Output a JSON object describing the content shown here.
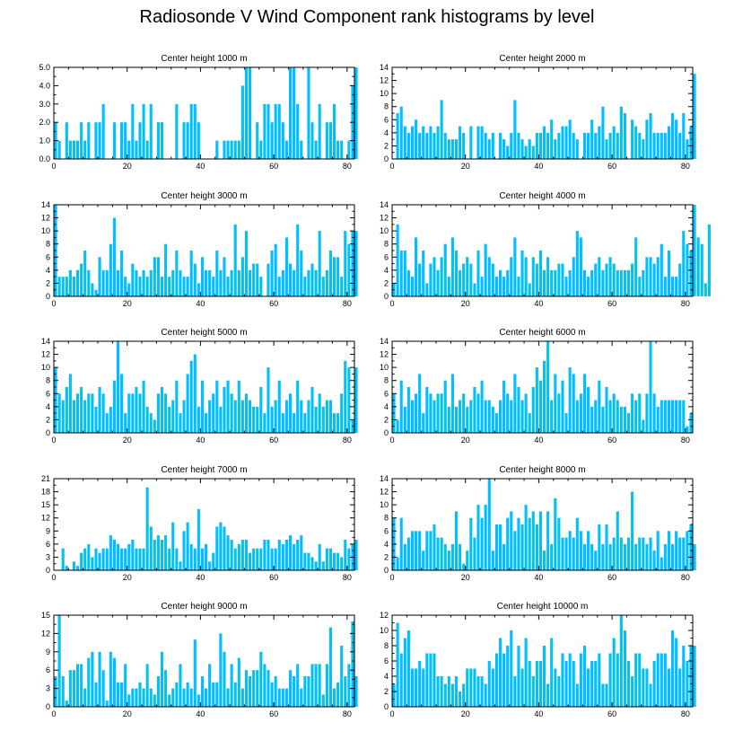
{
  "title": "Radiosonde V Wind Component rank histograms by level",
  "style": {
    "bar_color": "#00bfff",
    "axis_color": "#000000"
  },
  "chart_data": [
    {
      "type": "bar",
      "title": "Center height 1000 m",
      "xlim": [
        0,
        82
      ],
      "ylim": [
        0,
        5
      ],
      "xticks": [
        0,
        20,
        40,
        60,
        80
      ],
      "yticks": [
        0,
        1,
        2,
        3,
        4,
        5
      ],
      "ytick_labels": [
        "0.0",
        "1.0",
        "2.0",
        "3.0",
        "4.0",
        "5.0"
      ],
      "values": [
        2,
        1,
        0,
        2,
        1,
        1,
        1,
        2,
        1,
        2,
        0,
        2,
        2,
        3,
        0,
        0,
        2,
        0,
        2,
        2,
        1,
        3,
        1,
        2,
        3,
        1,
        3,
        0,
        2,
        2,
        0,
        0,
        0,
        3,
        0,
        2,
        2,
        3,
        3,
        2,
        0,
        0,
        0,
        0,
        1,
        0,
        1,
        1,
        1,
        1,
        1,
        4,
        5,
        5,
        0,
        2,
        1,
        3,
        3,
        2,
        3,
        3,
        2,
        1,
        5,
        5,
        3,
        1,
        0,
        5,
        2,
        1,
        3,
        0,
        2,
        2,
        3,
        1,
        1,
        0,
        1,
        4,
        5
      ]
    },
    {
      "type": "bar",
      "title": "Center height 2000 m",
      "xlim": [
        0,
        82
      ],
      "ylim": [
        0,
        14
      ],
      "xticks": [
        0,
        20,
        40,
        60,
        80
      ],
      "yticks": [
        0,
        2,
        4,
        6,
        8,
        10,
        12,
        14
      ],
      "values": [
        0,
        7,
        8,
        5,
        4,
        5,
        6,
        4,
        5,
        4,
        5,
        4,
        5,
        9,
        4,
        3,
        3,
        3,
        5,
        4,
        0,
        5,
        0,
        5,
        5,
        4,
        3,
        4,
        0,
        4,
        3,
        2,
        4,
        9,
        4,
        3,
        2,
        3,
        2,
        4,
        4,
        5,
        4,
        6,
        3,
        4,
        5,
        5,
        6,
        4,
        3,
        0,
        4,
        4,
        6,
        4,
        5,
        8,
        3,
        4,
        5,
        4,
        8,
        7,
        0,
        6,
        5,
        4,
        3,
        6,
        7,
        4,
        4,
        4,
        4,
        5,
        7,
        6,
        4,
        7,
        3,
        5,
        13
      ]
    },
    {
      "type": "bar",
      "title": "Center height 3000 m",
      "xlim": [
        0,
        82
      ],
      "ylim": [
        0,
        14
      ],
      "xticks": [
        0,
        20,
        40,
        60,
        80
      ],
      "yticks": [
        0,
        2,
        4,
        6,
        8,
        10,
        12,
        14
      ],
      "values": [
        14,
        3,
        3,
        3,
        4,
        3,
        4,
        5,
        7,
        4,
        2,
        1,
        6,
        4,
        4,
        8,
        12,
        4,
        7,
        3,
        2,
        5,
        4,
        3,
        4,
        3,
        4,
        6,
        6,
        3,
        8,
        3,
        4,
        7,
        4,
        3,
        3,
        7,
        5,
        2,
        6,
        4,
        4,
        3,
        7,
        4,
        6,
        3,
        4,
        11,
        4,
        6,
        10,
        4,
        5,
        5,
        3,
        0,
        5,
        7,
        8,
        3,
        4,
        9,
        5,
        4,
        11,
        7,
        3,
        4,
        5,
        4,
        10,
        3,
        4,
        7,
        6,
        6,
        3,
        10,
        8,
        10,
        10
      ]
    },
    {
      "type": "bar",
      "title": "Center height 4000 m",
      "xlim": [
        0,
        82
      ],
      "ylim": [
        0,
        14
      ],
      "xticks": [
        0,
        20,
        40,
        60,
        80
      ],
      "yticks": [
        0,
        2,
        4,
        6,
        8,
        10,
        12,
        14
      ],
      "values": [
        2,
        11,
        7,
        7,
        4,
        3,
        9,
        5,
        7,
        2,
        5,
        6,
        4,
        6,
        8,
        3,
        9,
        7,
        4,
        5,
        6,
        5,
        2,
        7,
        3,
        8,
        6,
        5,
        3,
        4,
        3,
        4,
        6,
        9,
        3,
        7,
        6,
        2,
        6,
        5,
        7,
        4,
        6,
        4,
        4,
        5,
        5,
        3,
        4,
        6,
        10,
        9,
        4,
        3,
        4,
        5,
        6,
        4,
        5,
        6,
        5,
        4,
        4,
        4,
        4,
        5,
        9,
        3,
        4,
        6,
        6,
        5,
        6,
        8,
        3,
        7,
        3,
        3,
        5,
        10,
        8,
        7,
        14,
        9,
        8,
        2,
        11
      ]
    },
    {
      "type": "bar",
      "title": "Center height 5000 m",
      "xlim": [
        0,
        82
      ],
      "ylim": [
        0,
        14
      ],
      "xticks": [
        0,
        20,
        40,
        60,
        80
      ],
      "yticks": [
        0,
        2,
        4,
        6,
        8,
        10,
        12,
        14
      ],
      "values": [
        10,
        6,
        5,
        7,
        9,
        5,
        6,
        7,
        5,
        6,
        6,
        4,
        7,
        6,
        3,
        4,
        8,
        14,
        9,
        3,
        6,
        6,
        7,
        6,
        8,
        4,
        3,
        2,
        6,
        7,
        6,
        4,
        5,
        8,
        3,
        5,
        9,
        11,
        12,
        4,
        8,
        3,
        5,
        6,
        8,
        4,
        7,
        8,
        6,
        5,
        8,
        5,
        6,
        5,
        4,
        4,
        7,
        3,
        10,
        4,
        5,
        8,
        3,
        5,
        6,
        3,
        8,
        5,
        3,
        5,
        7,
        4,
        6,
        4,
        5,
        5,
        3,
        3,
        6,
        11,
        10,
        2,
        10
      ]
    },
    {
      "type": "bar",
      "title": "Center height 6000 m",
      "xlim": [
        0,
        82
      ],
      "ylim": [
        0,
        14
      ],
      "xticks": [
        0,
        20,
        40,
        60,
        80
      ],
      "yticks": [
        0,
        2,
        4,
        6,
        8,
        10,
        12,
        14
      ],
      "values": [
        6,
        2,
        8,
        4,
        7,
        5,
        6,
        9,
        3,
        7,
        6,
        5,
        6,
        6,
        8,
        4,
        9,
        4,
        5,
        6,
        4,
        5,
        7,
        6,
        8,
        5,
        5,
        4,
        3,
        5,
        8,
        6,
        5,
        9,
        7,
        5,
        6,
        3,
        7,
        10,
        8,
        11,
        14,
        5,
        9,
        6,
        8,
        3,
        10,
        9,
        5,
        6,
        9,
        7,
        4,
        5,
        8,
        4,
        7,
        5,
        6,
        5,
        4,
        4,
        3,
        6,
        5,
        6,
        2,
        6,
        14,
        6,
        4,
        5,
        5,
        5,
        5,
        5,
        5,
        5,
        1,
        3
      ]
    },
    {
      "type": "bar",
      "title": "Center height 7000 m",
      "xlim": [
        0,
        82
      ],
      "ylim": [
        0,
        21
      ],
      "xticks": [
        0,
        20,
        40,
        60,
        80
      ],
      "yticks": [
        0,
        3,
        6,
        9,
        12,
        15,
        18,
        21
      ],
      "values": [
        0,
        0,
        5,
        1,
        0,
        2,
        1,
        4,
        5,
        6,
        3,
        5,
        4,
        5,
        5,
        8,
        7,
        6,
        5,
        5,
        6,
        7,
        5,
        5,
        5,
        19,
        10,
        7,
        8,
        7,
        8,
        5,
        11,
        5,
        2,
        9,
        11,
        6,
        5,
        14,
        5,
        6,
        2,
        4,
        10,
        11,
        10,
        8,
        7,
        5,
        6,
        7,
        7,
        4,
        5,
        5,
        5,
        7,
        7,
        5,
        5,
        7,
        6,
        7,
        8,
        6,
        7,
        8,
        4,
        4,
        3,
        2,
        6,
        2,
        5,
        5,
        4,
        4,
        3,
        7,
        5,
        6,
        7
      ]
    },
    {
      "type": "bar",
      "title": "Center height 8000 m",
      "xlim": [
        0,
        82
      ],
      "ylim": [
        0,
        14
      ],
      "xticks": [
        0,
        20,
        40,
        60,
        80
      ],
      "yticks": [
        0,
        2,
        4,
        6,
        8,
        10,
        12,
        14
      ],
      "values": [
        8,
        2,
        8,
        4,
        5,
        6,
        6,
        6,
        3,
        6,
        6,
        7,
        5,
        5,
        4,
        3,
        4,
        9,
        4,
        1,
        3,
        8,
        5,
        10,
        8,
        10,
        14,
        3,
        7,
        7,
        4,
        8,
        9,
        6,
        8,
        7,
        10,
        8,
        9,
        7,
        9,
        3,
        9,
        4,
        11,
        8,
        5,
        5,
        6,
        5,
        8,
        6,
        4,
        6,
        4,
        3,
        7,
        4,
        7,
        4,
        5,
        9,
        5,
        4,
        5,
        12,
        4,
        5,
        5,
        4,
        5,
        3,
        6,
        2,
        4,
        6,
        4,
        6,
        5,
        5,
        6,
        7,
        4
      ]
    },
    {
      "type": "bar",
      "title": "Center height 9000 m",
      "xlim": [
        0,
        82
      ],
      "ylim": [
        0,
        15
      ],
      "xticks": [
        0,
        20,
        40,
        60,
        80
      ],
      "yticks": [
        0,
        3,
        6,
        9,
        12,
        15
      ],
      "values": [
        5,
        15,
        5,
        1,
        6,
        6,
        7,
        7,
        3,
        8,
        9,
        4,
        9,
        6,
        1,
        9,
        8,
        4,
        4,
        7,
        2,
        3,
        3,
        4,
        3,
        7,
        3,
        2,
        5,
        9,
        6,
        2,
        3,
        4,
        7,
        3,
        4,
        3,
        11,
        2,
        5,
        3,
        7,
        4,
        4,
        12,
        9,
        3,
        7,
        4,
        8,
        3,
        6,
        5,
        6,
        6,
        9,
        7,
        6,
        4,
        5,
        3,
        3,
        3,
        6,
        5,
        7,
        3,
        5,
        5,
        7,
        7,
        7,
        2,
        7,
        13,
        3,
        4,
        10,
        5,
        7,
        14,
        5
      ]
    },
    {
      "type": "bar",
      "title": "Center height 10000 m",
      "xlim": [
        0,
        82
      ],
      "ylim": [
        0,
        12
      ],
      "xticks": [
        0,
        20,
        40,
        60,
        80
      ],
      "yticks": [
        0,
        2,
        4,
        6,
        8,
        10,
        12
      ],
      "values": [
        3,
        11,
        7,
        9,
        10,
        5,
        5,
        6,
        5,
        7,
        7,
        7,
        4,
        4,
        3,
        4,
        3,
        4,
        2,
        3,
        5,
        5,
        5,
        4,
        4,
        3,
        6,
        5,
        7,
        9,
        7,
        8,
        10,
        4,
        8,
        5,
        9,
        6,
        4,
        6,
        6,
        8,
        3,
        9,
        5,
        4,
        7,
        6,
        7,
        6,
        3,
        7,
        8,
        5,
        6,
        6,
        7,
        3,
        3,
        7,
        9,
        7,
        12,
        10,
        6,
        4,
        7,
        7,
        5,
        5,
        3,
        6,
        7,
        7,
        7,
        5,
        10,
        9,
        5,
        8,
        6,
        8,
        8
      ]
    }
  ]
}
